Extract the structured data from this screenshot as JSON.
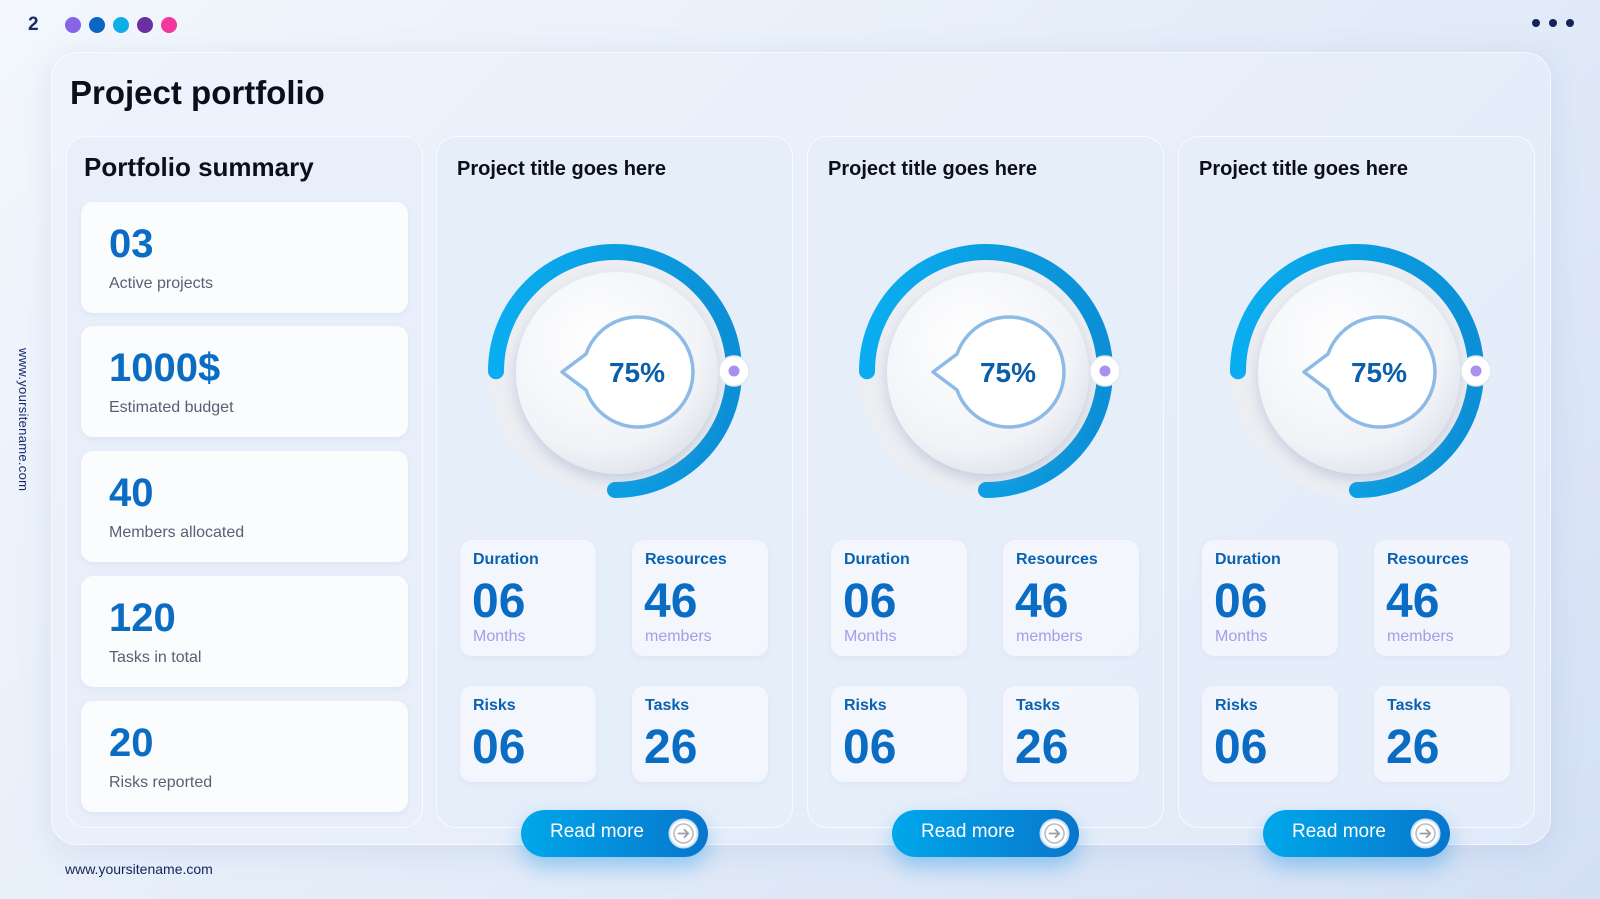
{
  "page_number": "2",
  "header_dots": [
    "#8466e6",
    "#0a66c2",
    "#10aee8",
    "#6a2fa0",
    "#f2389c"
  ],
  "site_url_vertical": "www.yoursitename.com",
  "site_url_footer": "www.yoursitename.com",
  "title": "Project portfolio",
  "summary": {
    "title": "Portfolio summary",
    "stats": [
      {
        "value": "03",
        "label": "Active projects"
      },
      {
        "value": "1000$",
        "label": "Estimated budget"
      },
      {
        "value": "40",
        "label": "Members allocated"
      },
      {
        "value": "120",
        "label": "Tasks in total"
      },
      {
        "value": "20",
        "label": "Risks reported"
      }
    ]
  },
  "projects": [
    {
      "title": "Project title goes here",
      "progress_text": "75%",
      "progress_value": 0.75,
      "duration": {
        "label": "Duration",
        "value": "06",
        "unit": "Months"
      },
      "resources": {
        "label": "Resources",
        "value": "46",
        "unit": "members"
      },
      "risks": {
        "label": "Risks",
        "value": "06"
      },
      "tasks": {
        "label": "Tasks",
        "value": "26"
      },
      "button_label": "Read more"
    },
    {
      "title": "Project title goes here",
      "progress_text": "75%",
      "progress_value": 0.75,
      "duration": {
        "label": "Duration",
        "value": "06",
        "unit": "Months"
      },
      "resources": {
        "label": "Resources",
        "value": "46",
        "unit": "members"
      },
      "risks": {
        "label": "Risks",
        "value": "06"
      },
      "tasks": {
        "label": "Tasks",
        "value": "26"
      },
      "button_label": "Read more"
    },
    {
      "title": "Project title goes here",
      "progress_text": "75%",
      "progress_value": 0.75,
      "duration": {
        "label": "Duration",
        "value": "06",
        "unit": "Months"
      },
      "resources": {
        "label": "Resources",
        "value": "46",
        "unit": "members"
      },
      "risks": {
        "label": "Risks",
        "value": "06"
      },
      "tasks": {
        "label": "Tasks",
        "value": "26"
      },
      "button_label": "Read more"
    }
  ],
  "icons": {
    "menu": "more-horizontal-icon",
    "button_arrow": "arrow-right-circle-icon"
  }
}
